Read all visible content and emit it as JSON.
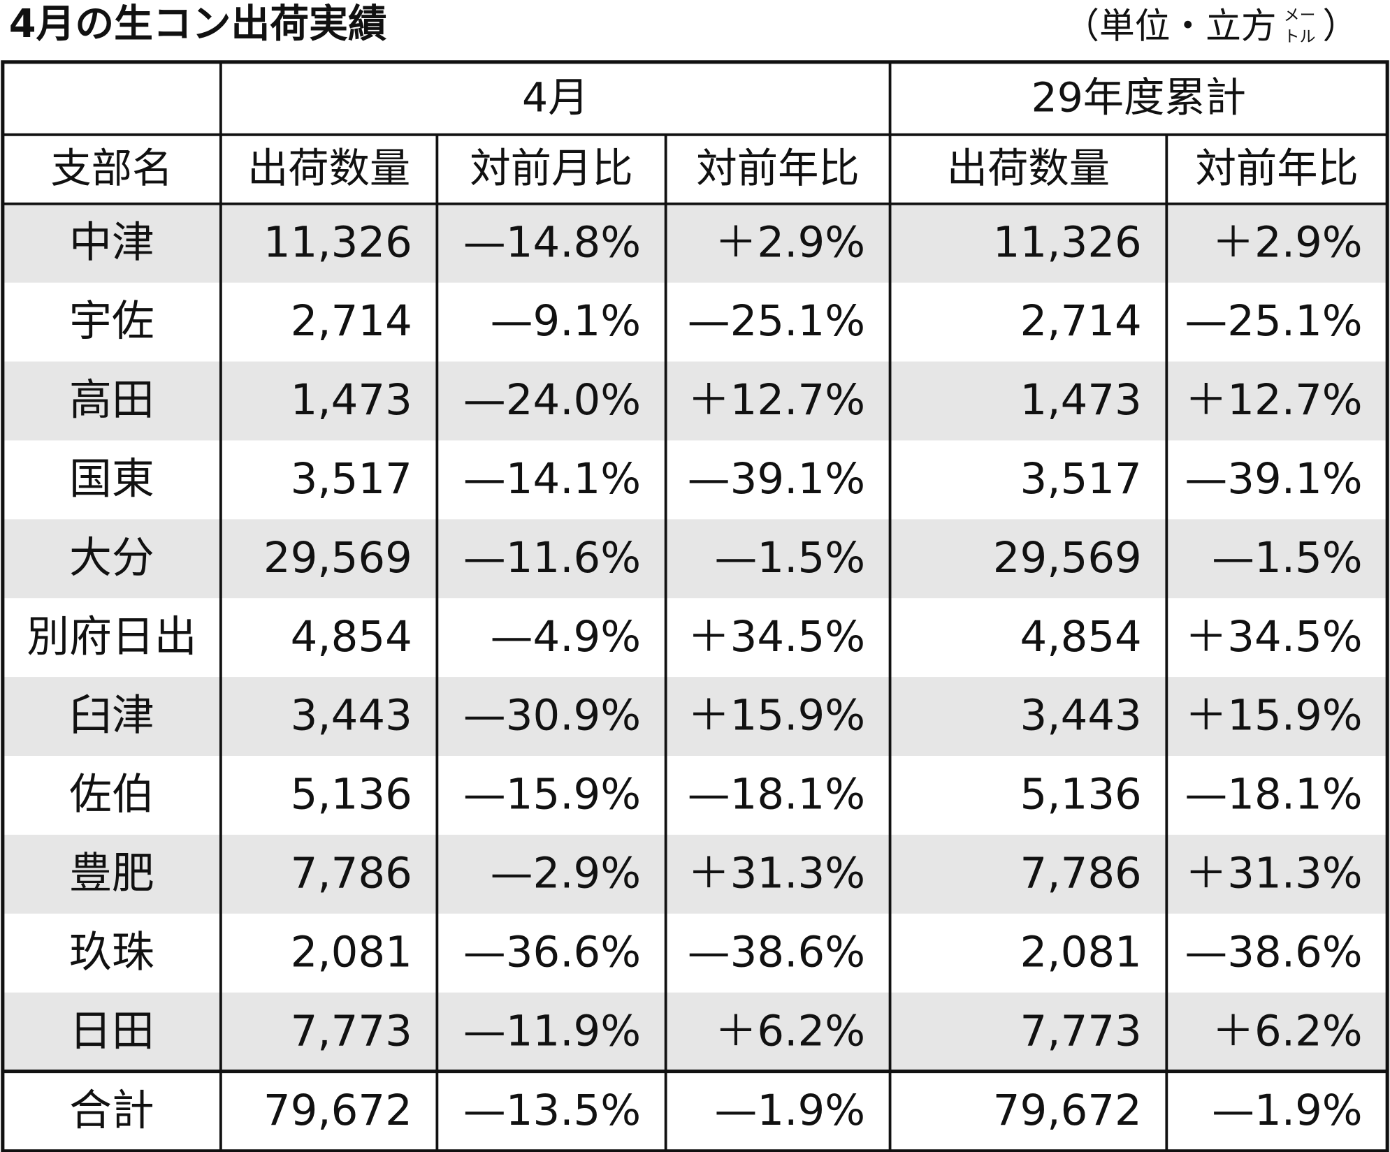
{
  "header": {
    "title": "4月の生コン出荷実績",
    "unit": {
      "open": "（単位・立方",
      "small_top": "メー",
      "small_bottom": "トル",
      "close": "）"
    }
  },
  "table": {
    "group_headers": [
      "4月",
      "29年度累計"
    ],
    "columns": [
      "支部名",
      "出荷数量",
      "対前月比",
      "対前年比",
      "出荷数量",
      "対前年比"
    ],
    "rows": [
      [
        "中津",
        "11,326",
        "—14.8%",
        "＋2.9%",
        "11,326",
        "＋2.9%"
      ],
      [
        "宇佐",
        "2,714",
        "—9.1%",
        "—25.1%",
        "2,714",
        "—25.1%"
      ],
      [
        "高田",
        "1,473",
        "—24.0%",
        "＋12.7%",
        "1,473",
        "＋12.7%"
      ],
      [
        "国東",
        "3,517",
        "—14.1%",
        "—39.1%",
        "3,517",
        "—39.1%"
      ],
      [
        "大分",
        "29,569",
        "—11.6%",
        "—1.5%",
        "29,569",
        "—1.5%"
      ],
      [
        "別府日出",
        "4,854",
        "—4.9%",
        "＋34.5%",
        "4,854",
        "＋34.5%"
      ],
      [
        "臼津",
        "3,443",
        "—30.9%",
        "＋15.9%",
        "3,443",
        "＋15.9%"
      ],
      [
        "佐伯",
        "5,136",
        "—15.9%",
        "—18.1%",
        "5,136",
        "—18.1%"
      ],
      [
        "豊肥",
        "7,786",
        "—2.9%",
        "＋31.3%",
        "7,786",
        "＋31.3%"
      ],
      [
        "玖珠",
        "2,081",
        "—36.6%",
        "—38.6%",
        "2,081",
        "—38.6%"
      ],
      [
        "日田",
        "7,773",
        "—11.9%",
        "＋6.2%",
        "7,773",
        "＋6.2%"
      ]
    ],
    "total": [
      "合計",
      "79,672",
      "—13.5%",
      "—1.9%",
      "79,672",
      "—1.9%"
    ]
  }
}
